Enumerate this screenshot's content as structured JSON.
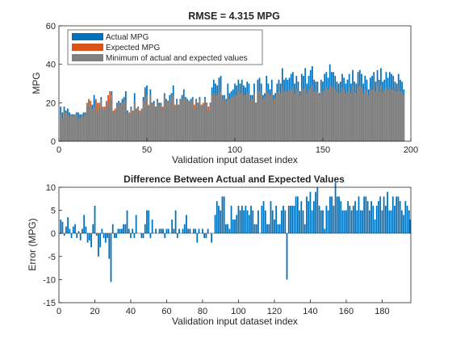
{
  "chart_data": [
    {
      "type": "bar",
      "title": "RMSE = 4.315 MPG",
      "xlabel": "Validation input dataset index",
      "ylabel": "MPG",
      "xlim": [
        0,
        200
      ],
      "ylim": [
        0,
        60
      ],
      "xticks": [
        0,
        50,
        100,
        150,
        200
      ],
      "yticks": [
        0,
        20,
        40,
        60
      ],
      "grid": false,
      "legend_position": "top-left",
      "legend": [
        "Actual MPG",
        "Expected MPG",
        "Minimum of actual and expected values"
      ],
      "colors": {
        "actual": "#0072BD",
        "expected": "#D95319",
        "minimum": "#808080"
      },
      "x": [
        1,
        2,
        3,
        4,
        5,
        6,
        7,
        8,
        9,
        10,
        11,
        12,
        13,
        14,
        15,
        16,
        17,
        18,
        19,
        20,
        21,
        22,
        23,
        24,
        25,
        26,
        27,
        28,
        29,
        30,
        31,
        32,
        33,
        34,
        35,
        36,
        37,
        38,
        39,
        40,
        41,
        42,
        43,
        44,
        45,
        46,
        47,
        48,
        49,
        50,
        51,
        52,
        53,
        54,
        55,
        56,
        57,
        58,
        59,
        60,
        61,
        62,
        63,
        64,
        65,
        66,
        67,
        68,
        69,
        70,
        71,
        72,
        73,
        74,
        75,
        76,
        77,
        78,
        79,
        80,
        81,
        82,
        83,
        84,
        85,
        86,
        87,
        88,
        89,
        90,
        91,
        92,
        93,
        94,
        95,
        96,
        97,
        98,
        99,
        100,
        101,
        102,
        103,
        104,
        105,
        106,
        107,
        108,
        109,
        110,
        111,
        112,
        113,
        114,
        115,
        116,
        117,
        118,
        119,
        120,
        121,
        122,
        123,
        124,
        125,
        126,
        127,
        128,
        129,
        130,
        131,
        132,
        133,
        134,
        135,
        136,
        137,
        138,
        139,
        140,
        141,
        142,
        143,
        144,
        145,
        146,
        147,
        148,
        149,
        150,
        151,
        152,
        153,
        154,
        155,
        156,
        157,
        158,
        159,
        160,
        161,
        162,
        163,
        164,
        165,
        166,
        167,
        168,
        169,
        170,
        171,
        172,
        173,
        174,
        175,
        176,
        177,
        178,
        179,
        180,
        181,
        182,
        183,
        184,
        185,
        186,
        187,
        188,
        189,
        190,
        191,
        192,
        193,
        194,
        195,
        196
      ],
      "series": [
        {
          "name": "Actual MPG",
          "values": [
            18,
            15,
            18,
            16,
            17,
            15,
            14,
            14,
            14,
            15,
            15,
            14,
            14,
            15,
            15,
            18,
            21,
            18,
            19,
            24,
            21,
            15,
            17,
            23,
            17,
            16,
            20,
            18,
            22,
            26,
            15,
            16,
            20,
            21,
            20,
            22,
            23,
            26,
            16,
            14,
            18,
            15,
            25,
            17,
            18,
            15,
            16,
            23,
            28,
            29,
            18,
            27,
            20,
            21,
            18,
            22,
            20,
            20,
            17,
            25,
            22,
            21,
            24,
            25,
            29,
            18,
            22,
            19,
            22,
            24,
            27,
            23,
            22,
            21,
            22,
            23,
            17,
            22,
            20,
            23,
            18,
            19,
            23,
            20,
            16,
            20,
            28,
            32,
            30,
            29,
            33,
            34,
            24,
            24,
            22,
            30,
            25,
            26,
            27,
            30,
            29,
            32,
            30,
            32,
            29,
            28,
            31,
            30,
            24,
            24,
            30,
            20,
            32,
            33,
            30,
            24,
            25,
            34,
            30,
            27,
            32,
            24,
            25,
            30,
            32,
            30,
            38,
            32,
            33,
            32,
            33,
            35,
            36,
            30,
            34,
            31,
            26,
            35,
            34,
            38,
            30,
            34,
            37,
            39,
            32,
            31,
            31,
            25,
            32,
            31,
            35,
            36,
            33,
            40,
            36,
            36,
            34,
            31,
            30,
            31,
            35,
            33,
            30,
            32,
            35,
            30,
            37,
            31,
            30,
            36,
            37,
            35,
            30,
            34,
            32,
            27,
            33,
            34,
            36,
            31,
            37,
            32,
            38,
            31,
            32,
            36,
            33,
            36,
            35,
            34,
            31,
            30,
            35,
            32,
            31,
            27
          ]
        },
        {
          "name": "Expected MPG",
          "values": [
            14,
            12,
            15,
            15,
            14,
            13,
            14,
            13,
            14,
            14,
            12,
            12,
            13,
            13,
            14,
            20,
            22,
            21,
            17,
            18,
            22,
            20,
            20,
            22,
            18,
            18,
            21,
            24,
            26,
            24,
            16,
            17,
            19,
            20,
            19,
            20,
            21,
            21,
            15,
            15,
            17,
            16,
            21,
            17,
            18,
            16,
            17,
            21,
            23,
            24,
            19,
            24,
            20,
            20,
            18,
            21,
            19,
            19,
            18,
            24,
            21,
            21,
            21,
            24,
            24,
            19,
            21,
            19,
            21,
            22,
            23,
            22,
            21,
            21,
            21,
            22,
            19,
            21,
            20,
            22,
            19,
            20,
            22,
            20,
            18,
            20,
            24,
            25,
            24,
            24,
            25,
            26,
            22,
            22,
            21,
            24,
            22,
            23,
            23,
            24,
            24,
            26,
            25,
            26,
            24,
            24,
            25,
            25,
            22,
            22,
            25,
            20,
            26,
            26,
            25,
            22,
            23,
            27,
            25,
            24,
            26,
            22,
            23,
            25,
            26,
            25,
            28,
            26,
            27,
            26,
            27,
            27,
            28,
            25,
            27,
            26,
            24,
            27,
            27,
            29,
            25,
            27,
            28,
            29,
            26,
            26,
            26,
            24,
            26,
            26,
            27,
            28,
            27,
            29,
            28,
            28,
            27,
            26,
            25,
            26,
            28,
            27,
            25,
            26,
            28,
            25,
            29,
            26,
            25,
            28,
            29,
            28,
            25,
            27,
            26,
            24,
            27,
            27,
            28,
            26,
            29,
            26,
            29,
            26,
            27,
            28,
            27,
            28,
            27,
            27,
            26,
            26,
            28,
            26,
            26,
            24
          ]
        },
        {
          "name": "Minimum of actual and expected values",
          "values": [
            14,
            12,
            15,
            15,
            14,
            13,
            14,
            13,
            14,
            14,
            12,
            12,
            13,
            13,
            14,
            18,
            21,
            18,
            17,
            18,
            21,
            15,
            17,
            22,
            17,
            16,
            20,
            18,
            22,
            24,
            15,
            16,
            19,
            20,
            19,
            20,
            21,
            21,
            15,
            14,
            17,
            15,
            21,
            17,
            18,
            15,
            16,
            21,
            23,
            24,
            18,
            24,
            20,
            20,
            18,
            21,
            19,
            19,
            17,
            24,
            21,
            21,
            21,
            24,
            24,
            18,
            21,
            19,
            21,
            22,
            23,
            22,
            21,
            21,
            21,
            22,
            17,
            21,
            20,
            22,
            18,
            19,
            22,
            20,
            16,
            20,
            24,
            25,
            24,
            24,
            25,
            26,
            22,
            22,
            21,
            24,
            22,
            23,
            23,
            24,
            24,
            26,
            25,
            26,
            24,
            24,
            25,
            25,
            22,
            22,
            25,
            20,
            26,
            26,
            25,
            22,
            23,
            27,
            25,
            24,
            26,
            22,
            23,
            25,
            26,
            25,
            28,
            26,
            27,
            26,
            27,
            27,
            28,
            25,
            27,
            26,
            24,
            27,
            27,
            29,
            25,
            27,
            28,
            29,
            26,
            26,
            26,
            24,
            26,
            26,
            27,
            28,
            27,
            29,
            28,
            28,
            27,
            26,
            25,
            26,
            28,
            27,
            25,
            26,
            28,
            25,
            29,
            26,
            25,
            28,
            29,
            28,
            25,
            27,
            26,
            24,
            27,
            27,
            28,
            26,
            29,
            26,
            29,
            26,
            27,
            28,
            27,
            28,
            27,
            27,
            26,
            26,
            28,
            26,
            26,
            24
          ]
        }
      ]
    },
    {
      "type": "bar",
      "title": "Difference Between Actual and Expected Values",
      "xlabel": "Validation input dataset index",
      "ylabel": "Error (MPG)",
      "xlim": [
        0,
        196
      ],
      "ylim": [
        -15,
        10
      ],
      "xticks": [
        0,
        20,
        40,
        60,
        80,
        100,
        120,
        140,
        160,
        180
      ],
      "yticks": [
        -15,
        -10,
        -5,
        0,
        5,
        10
      ],
      "grid": false,
      "colors": {
        "error": "#0072BD"
      },
      "x": [
        1,
        2,
        3,
        4,
        5,
        6,
        7,
        8,
        9,
        10,
        11,
        12,
        13,
        14,
        15,
        16,
        17,
        18,
        19,
        20,
        21,
        22,
        23,
        24,
        25,
        26,
        27,
        28,
        29,
        30,
        31,
        32,
        33,
        34,
        35,
        36,
        37,
        38,
        39,
        40,
        41,
        42,
        43,
        44,
        45,
        46,
        47,
        48,
        49,
        50,
        51,
        52,
        53,
        54,
        55,
        56,
        57,
        58,
        59,
        60,
        61,
        62,
        63,
        64,
        65,
        66,
        67,
        68,
        69,
        70,
        71,
        72,
        73,
        74,
        75,
        76,
        77,
        78,
        79,
        80,
        81,
        82,
        83,
        84,
        85,
        86,
        87,
        88,
        89,
        90,
        91,
        92,
        93,
        94,
        95,
        96,
        97,
        98,
        99,
        100,
        101,
        102,
        103,
        104,
        105,
        106,
        107,
        108,
        109,
        110,
        111,
        112,
        113,
        114,
        115,
        116,
        117,
        118,
        119,
        120,
        121,
        122,
        123,
        124,
        125,
        126,
        127,
        128,
        129,
        130,
        131,
        132,
        133,
        134,
        135,
        136,
        137,
        138,
        139,
        140,
        141,
        142,
        143,
        144,
        145,
        146,
        147,
        148,
        149,
        150,
        151,
        152,
        153,
        154,
        155,
        156,
        157,
        158,
        159,
        160,
        161,
        162,
        163,
        164,
        165,
        166,
        167,
        168,
        169,
        170,
        171,
        172,
        173,
        174,
        175,
        176,
        177,
        178,
        179,
        180,
        181,
        182,
        183,
        184,
        185,
        186,
        187,
        188,
        189,
        190,
        191,
        192,
        193,
        194,
        195,
        196
      ],
      "values": [
        3,
        2.5,
        -0.5,
        1.5,
        3.5,
        1,
        -1,
        1.5,
        2,
        -1,
        0.5,
        -1.5,
        1,
        4,
        1.5,
        -2,
        -1.5,
        -3,
        2,
        6,
        -0.5,
        -5,
        -3,
        1,
        -1,
        -2,
        -1,
        -5.5,
        -10.5,
        2,
        -1,
        -1,
        1,
        1,
        1,
        2,
        2,
        5,
        1,
        -1,
        1,
        -1,
        4,
        0,
        0,
        -1,
        -1,
        2,
        5,
        5,
        -1,
        3,
        0,
        1,
        0,
        1,
        1,
        1,
        -1,
        1,
        1,
        0,
        3,
        1,
        5,
        -1,
        1,
        0,
        1,
        2,
        4,
        1,
        1,
        0,
        1,
        1,
        -2,
        1,
        0,
        1,
        -1,
        -1,
        1,
        0,
        -2,
        0,
        4,
        7,
        6,
        5,
        8,
        8,
        2,
        2,
        1,
        6,
        3,
        3,
        4,
        6,
        5,
        6,
        5,
        6,
        5,
        4,
        6,
        5,
        2,
        2,
        5,
        0,
        6,
        7,
        5,
        2,
        2,
        7,
        5,
        3,
        6,
        2,
        2,
        5,
        6,
        5,
        -10,
        6,
        6,
        6,
        6,
        8,
        8,
        5,
        7,
        5,
        2,
        8,
        7,
        9,
        5,
        7,
        9,
        10,
        6,
        5,
        5,
        1,
        6,
        5,
        8,
        8,
        6,
        11,
        8,
        8,
        7,
        5,
        5,
        5,
        7,
        6,
        5,
        6,
        7,
        5,
        8,
        5,
        5,
        8,
        8,
        7,
        5,
        7,
        6,
        3,
        6,
        7,
        8,
        5,
        8,
        6,
        9,
        5,
        5,
        8,
        6,
        8,
        8,
        7,
        5,
        4,
        7,
        6,
        5,
        3
      ]
    }
  ]
}
